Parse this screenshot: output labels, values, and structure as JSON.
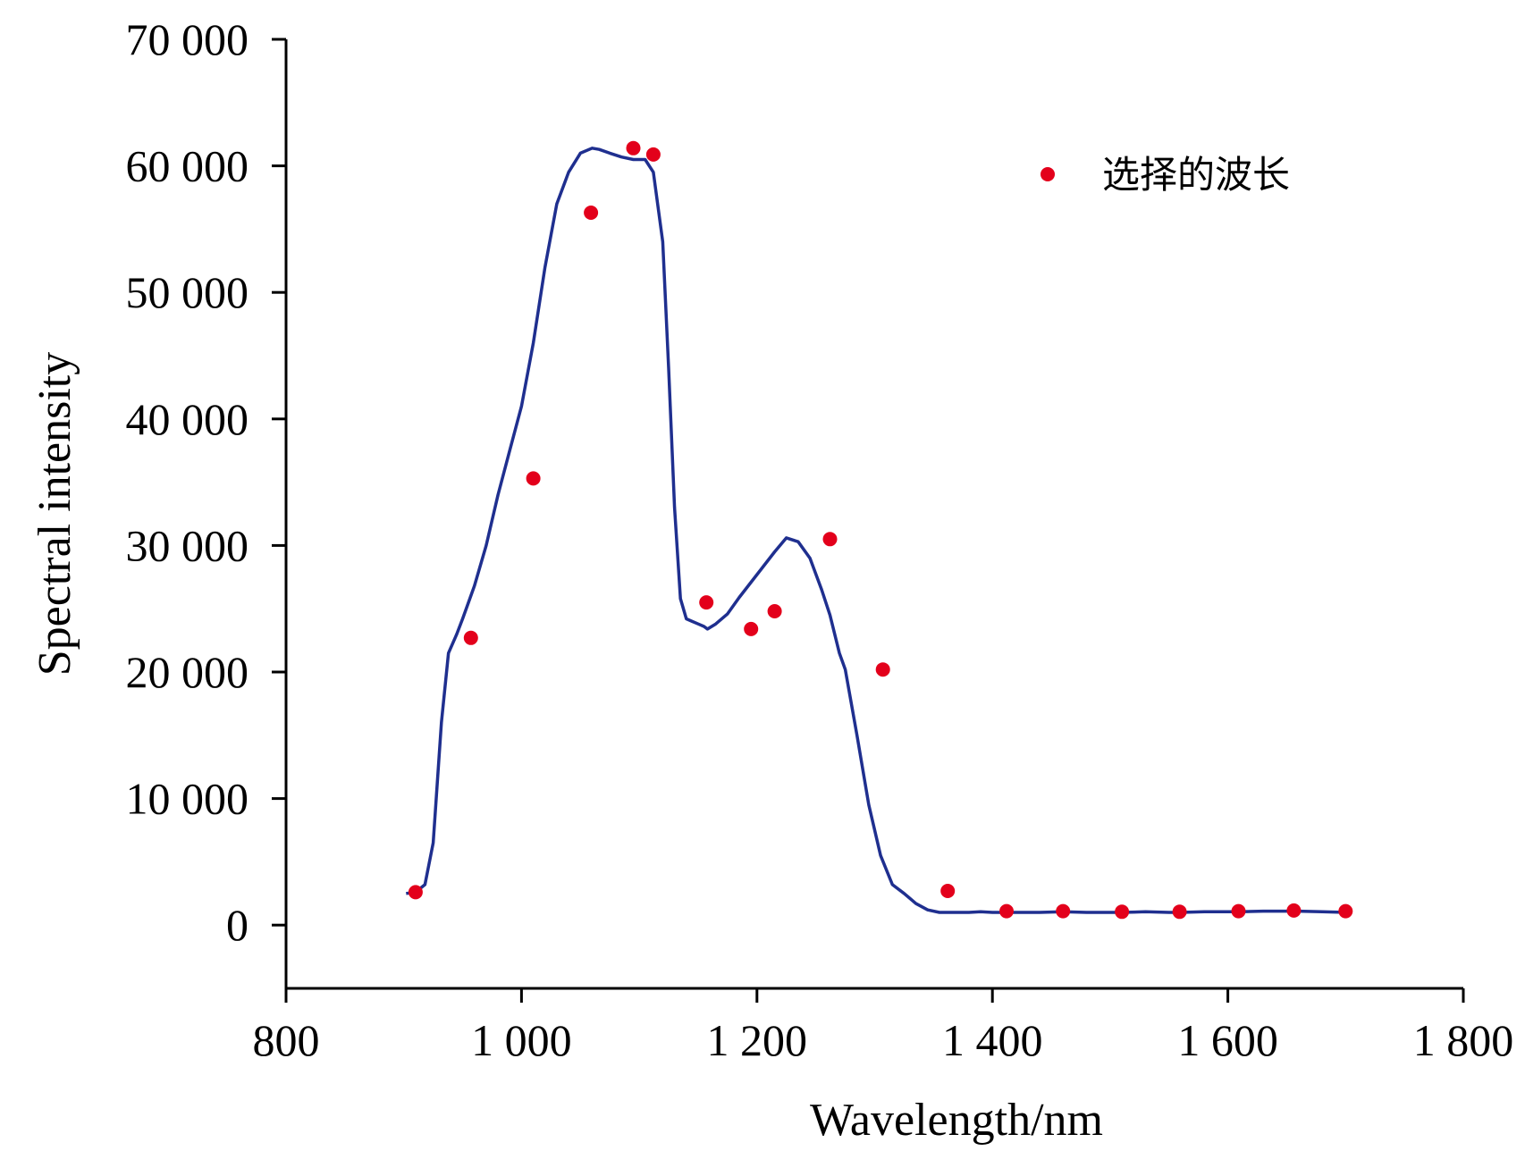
{
  "chart_data": {
    "type": "line",
    "title": "",
    "xlabel": "Wavelength/nm",
    "ylabel": "Spectral intensity",
    "xlim": [
      800,
      1800
    ],
    "ylim": [
      -5000,
      70000
    ],
    "x_ticks": [
      800,
      1000,
      1200,
      1400,
      1600,
      1800
    ],
    "x_tick_labels": [
      "800",
      "1 000",
      "1 200",
      "1 400",
      "1 600",
      "1 800"
    ],
    "y_ticks": [
      0,
      10000,
      20000,
      30000,
      40000,
      50000,
      60000,
      70000
    ],
    "y_tick_labels": [
      "0",
      "10 000",
      "20 000",
      "30 000",
      "40 000",
      "50 000",
      "60 000",
      "70 000"
    ],
    "grid": false,
    "legend_position": "top-right",
    "colors": {
      "line": "#1f2f8f",
      "markers": "#e3001b",
      "axis": "#000000"
    },
    "series": [
      {
        "kind": "line",
        "x": [
          902,
          910,
          918,
          925,
          932,
          938,
          945,
          950,
          955,
          960,
          970,
          980,
          990,
          1000,
          1010,
          1020,
          1030,
          1040,
          1050,
          1060,
          1066,
          1075,
          1085,
          1095,
          1105,
          1112,
          1120,
          1125,
          1130,
          1135,
          1140,
          1145,
          1150,
          1155,
          1158,
          1165,
          1175,
          1185,
          1195,
          1205,
          1215,
          1225,
          1235,
          1245,
          1255,
          1262,
          1270,
          1275,
          1285,
          1295,
          1305,
          1315,
          1325,
          1335,
          1345,
          1355,
          1362,
          1370,
          1380,
          1390,
          1400,
          1412,
          1420,
          1440,
          1460,
          1480,
          1500,
          1510,
          1530,
          1550,
          1560,
          1580,
          1600,
          1610,
          1630,
          1650,
          1660,
          1680,
          1700
        ],
        "y": [
          2500,
          2600,
          3200,
          6500,
          16000,
          21500,
          23000,
          24200,
          25500,
          26800,
          30000,
          34000,
          37500,
          41000,
          46000,
          52000,
          57000,
          59500,
          61000,
          61400,
          61300,
          61000,
          60700,
          60500,
          60500,
          59500,
          54000,
          44000,
          33000,
          25800,
          24200,
          24000,
          23800,
          23600,
          23400,
          23800,
          24600,
          25900,
          27100,
          28300,
          29500,
          30600,
          30300,
          29000,
          26500,
          24500,
          21500,
          20200,
          15000,
          9500,
          5500,
          3200,
          2500,
          1700,
          1200,
          1000,
          1000,
          1000,
          1000,
          1050,
          1000,
          1000,
          1000,
          1000,
          1050,
          1000,
          1000,
          1000,
          1050,
          1000,
          1000,
          1050,
          1050,
          1050,
          1100,
          1100,
          1100,
          1050,
          1000
        ]
      },
      {
        "name": "选择的波长",
        "kind": "scatter",
        "x": [
          910,
          957,
          1010,
          1059,
          1095,
          1112,
          1157,
          1195,
          1215,
          1262,
          1307,
          1362,
          1412,
          1460,
          1510,
          1559,
          1609,
          1656,
          1700
        ],
        "y": [
          2600,
          22700,
          35300,
          56300,
          61400,
          60900,
          25500,
          23400,
          24800,
          30500,
          20200,
          2700,
          1100,
          1100,
          1050,
          1050,
          1100,
          1150,
          1100
        ]
      }
    ]
  }
}
